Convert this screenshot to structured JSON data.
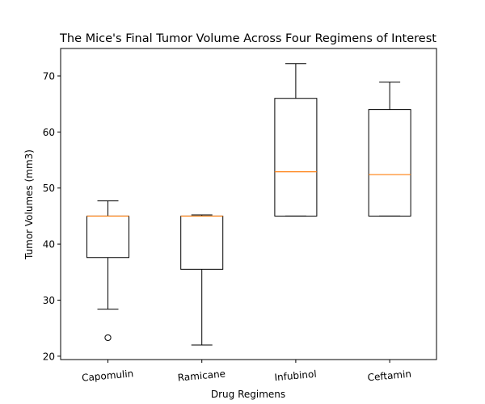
{
  "chart_data": {
    "type": "box",
    "title": "The Mice's Final Tumor Volume Across Four Regimens of Interest",
    "xlabel": "Drug Regimens",
    "ylabel": "Tumor Volumes (mm3)",
    "categories": [
      "Capomulin",
      "Ramicane",
      "Infubinol",
      "Ceftamin"
    ],
    "ylim": [
      19.4,
      74.9
    ],
    "yticks": [
      20,
      30,
      40,
      50,
      60,
      70
    ],
    "boxes": [
      {
        "category": "Capomulin",
        "whisker_low": 28.4,
        "q1": 37.6,
        "median": 45.0,
        "q3": 45.0,
        "whisker_high": 47.7,
        "outliers": [
          23.3
        ]
      },
      {
        "category": "Ramicane",
        "whisker_low": 22.0,
        "q1": 35.5,
        "median": 45.0,
        "q3": 45.0,
        "whisker_high": 45.2,
        "outliers": []
      },
      {
        "category": "Infubinol",
        "whisker_low": 45.0,
        "q1": 45.0,
        "median": 52.9,
        "q3": 66.0,
        "whisker_high": 72.2,
        "outliers": []
      },
      {
        "category": "Ceftamin",
        "whisker_low": 45.0,
        "q1": 45.0,
        "median": 52.4,
        "q3": 64.0,
        "whisker_high": 68.9,
        "outliers": []
      }
    ],
    "colors": {
      "box": "#000000",
      "median": "#ff7f0e"
    },
    "grid": false
  }
}
